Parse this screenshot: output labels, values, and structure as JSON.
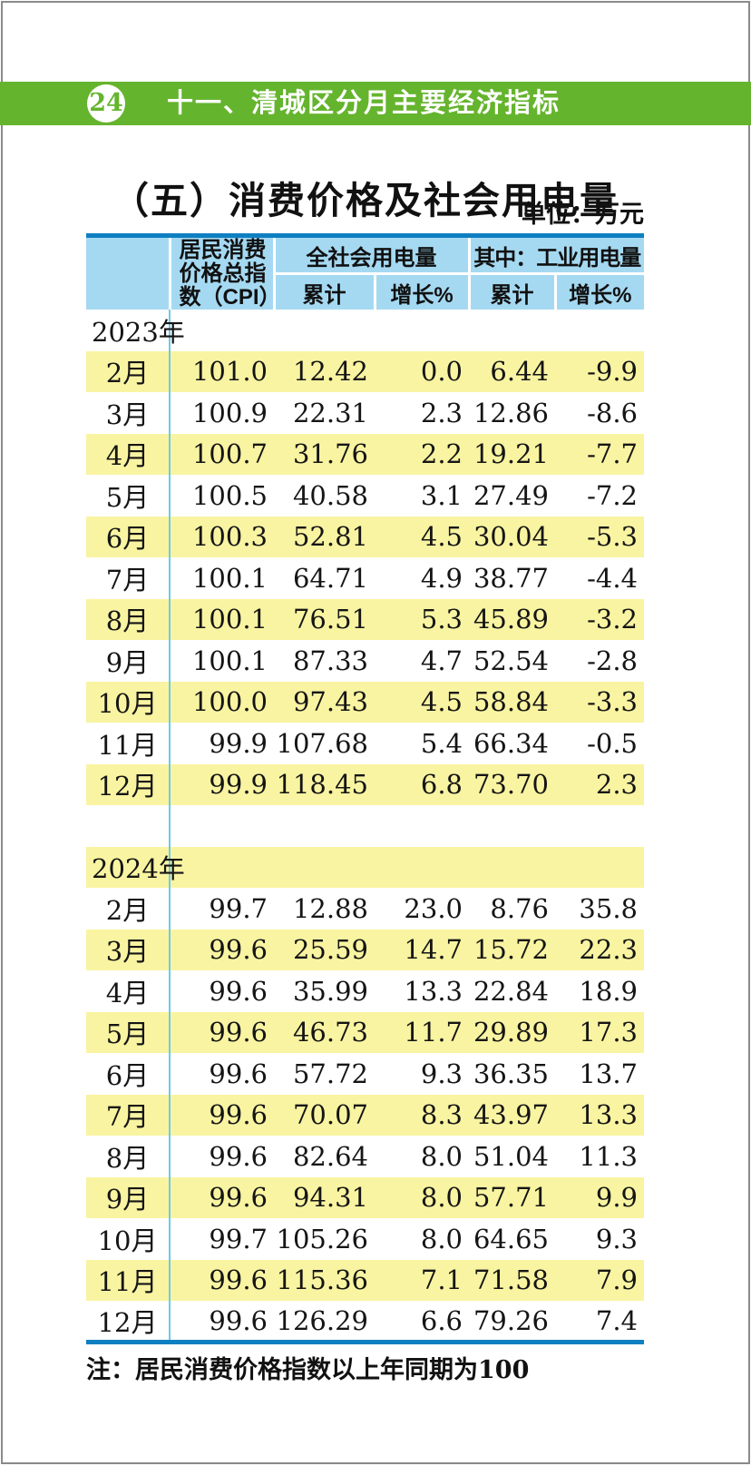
{
  "page": {
    "badge": "24",
    "chapter_title": "十一、清城区分月主要经济指标",
    "title": "（五）消费价格及社会用电量",
    "unit": "单位：万元",
    "note": "注：居民消费价格指数以上年同期为100"
  },
  "colors": {
    "chapter_bar_green": "#65b42e",
    "table_header_blue": "#a5d9f2",
    "table_border_blue": "#0e7fc1",
    "row_highlight_yellow": "#f9f4a1",
    "label_divider_cyan": "#6fc9e8"
  },
  "table": {
    "headers": {
      "col_cpi": "居民消费价格总指数（CPI）",
      "group_total_power": "全社会用电量",
      "group_industrial_power": "其中：工业用电量",
      "subheaders": [
        "累计",
        "增长%",
        "累计",
        "增长%"
      ]
    },
    "rows": [
      {
        "kind": "year",
        "bg": "white",
        "label": "2023年",
        "values": [
          "",
          "",
          "",
          "",
          ""
        ]
      },
      {
        "kind": "month",
        "bg": "yellow",
        "label": "2月",
        "values": [
          "101.0",
          "12.42",
          "0.0",
          "6.44",
          "-9.9"
        ]
      },
      {
        "kind": "month",
        "bg": "white",
        "label": "3月",
        "values": [
          "100.9",
          "22.31",
          "2.3",
          "12.86",
          "-8.6"
        ]
      },
      {
        "kind": "month",
        "bg": "yellow",
        "label": "4月",
        "values": [
          "100.7",
          "31.76",
          "2.2",
          "19.21",
          "-7.7"
        ]
      },
      {
        "kind": "month",
        "bg": "white",
        "label": "5月",
        "values": [
          "100.5",
          "40.58",
          "3.1",
          "27.49",
          "-7.2"
        ]
      },
      {
        "kind": "month",
        "bg": "yellow",
        "label": "6月",
        "values": [
          "100.3",
          "52.81",
          "4.5",
          "30.04",
          "-5.3"
        ]
      },
      {
        "kind": "month",
        "bg": "white",
        "label": "7月",
        "values": [
          "100.1",
          "64.71",
          "4.9",
          "38.77",
          "-4.4"
        ]
      },
      {
        "kind": "month",
        "bg": "yellow",
        "label": "8月",
        "values": [
          "100.1",
          "76.51",
          "5.3",
          "45.89",
          "-3.2"
        ]
      },
      {
        "kind": "month",
        "bg": "white",
        "label": "9月",
        "values": [
          "100.1",
          "87.33",
          "4.7",
          "52.54",
          "-2.8"
        ]
      },
      {
        "kind": "month",
        "bg": "yellow",
        "label": "10月",
        "values": [
          "100.0",
          "97.43",
          "4.5",
          "58.84",
          "-3.3"
        ]
      },
      {
        "kind": "month",
        "bg": "white",
        "label": "11月",
        "values": [
          "99.9",
          "107.68",
          "5.4",
          "66.34",
          "-0.5"
        ]
      },
      {
        "kind": "month",
        "bg": "yellow",
        "label": "12月",
        "values": [
          "99.9",
          "118.45",
          "6.8",
          "73.70",
          "2.3"
        ]
      },
      {
        "kind": "spacer",
        "bg": "white",
        "label": "",
        "values": [
          "",
          "",
          "",
          "",
          ""
        ]
      },
      {
        "kind": "year",
        "bg": "yellow",
        "label": "2024年",
        "values": [
          "",
          "",
          "",
          "",
          ""
        ]
      },
      {
        "kind": "month",
        "bg": "white",
        "label": "2月",
        "values": [
          "99.7",
          "12.88",
          "23.0",
          "8.76",
          "35.8"
        ]
      },
      {
        "kind": "month",
        "bg": "yellow",
        "label": "3月",
        "values": [
          "99.6",
          "25.59",
          "14.7",
          "15.72",
          "22.3"
        ]
      },
      {
        "kind": "month",
        "bg": "white",
        "label": "4月",
        "values": [
          "99.6",
          "35.99",
          "13.3",
          "22.84",
          "18.9"
        ]
      },
      {
        "kind": "month",
        "bg": "yellow",
        "label": "5月",
        "values": [
          "99.6",
          "46.73",
          "11.7",
          "29.89",
          "17.3"
        ]
      },
      {
        "kind": "month",
        "bg": "white",
        "label": "6月",
        "values": [
          "99.6",
          "57.72",
          "9.3",
          "36.35",
          "13.7"
        ]
      },
      {
        "kind": "month",
        "bg": "yellow",
        "label": "7月",
        "values": [
          "99.6",
          "70.07",
          "8.3",
          "43.97",
          "13.3"
        ]
      },
      {
        "kind": "month",
        "bg": "white",
        "label": "8月",
        "values": [
          "99.6",
          "82.64",
          "8.0",
          "51.04",
          "11.3"
        ]
      },
      {
        "kind": "month",
        "bg": "yellow",
        "label": "9月",
        "values": [
          "99.6",
          "94.31",
          "8.0",
          "57.71",
          "9.9"
        ]
      },
      {
        "kind": "month",
        "bg": "white",
        "label": "10月",
        "values": [
          "99.7",
          "105.26",
          "8.0",
          "64.65",
          "9.3"
        ]
      },
      {
        "kind": "month",
        "bg": "yellow",
        "label": "11月",
        "values": [
          "99.6",
          "115.36",
          "7.1",
          "71.58",
          "7.9"
        ]
      },
      {
        "kind": "month",
        "bg": "white",
        "label": "12月",
        "values": [
          "99.6",
          "126.29",
          "6.6",
          "79.26",
          "7.4"
        ]
      }
    ]
  }
}
